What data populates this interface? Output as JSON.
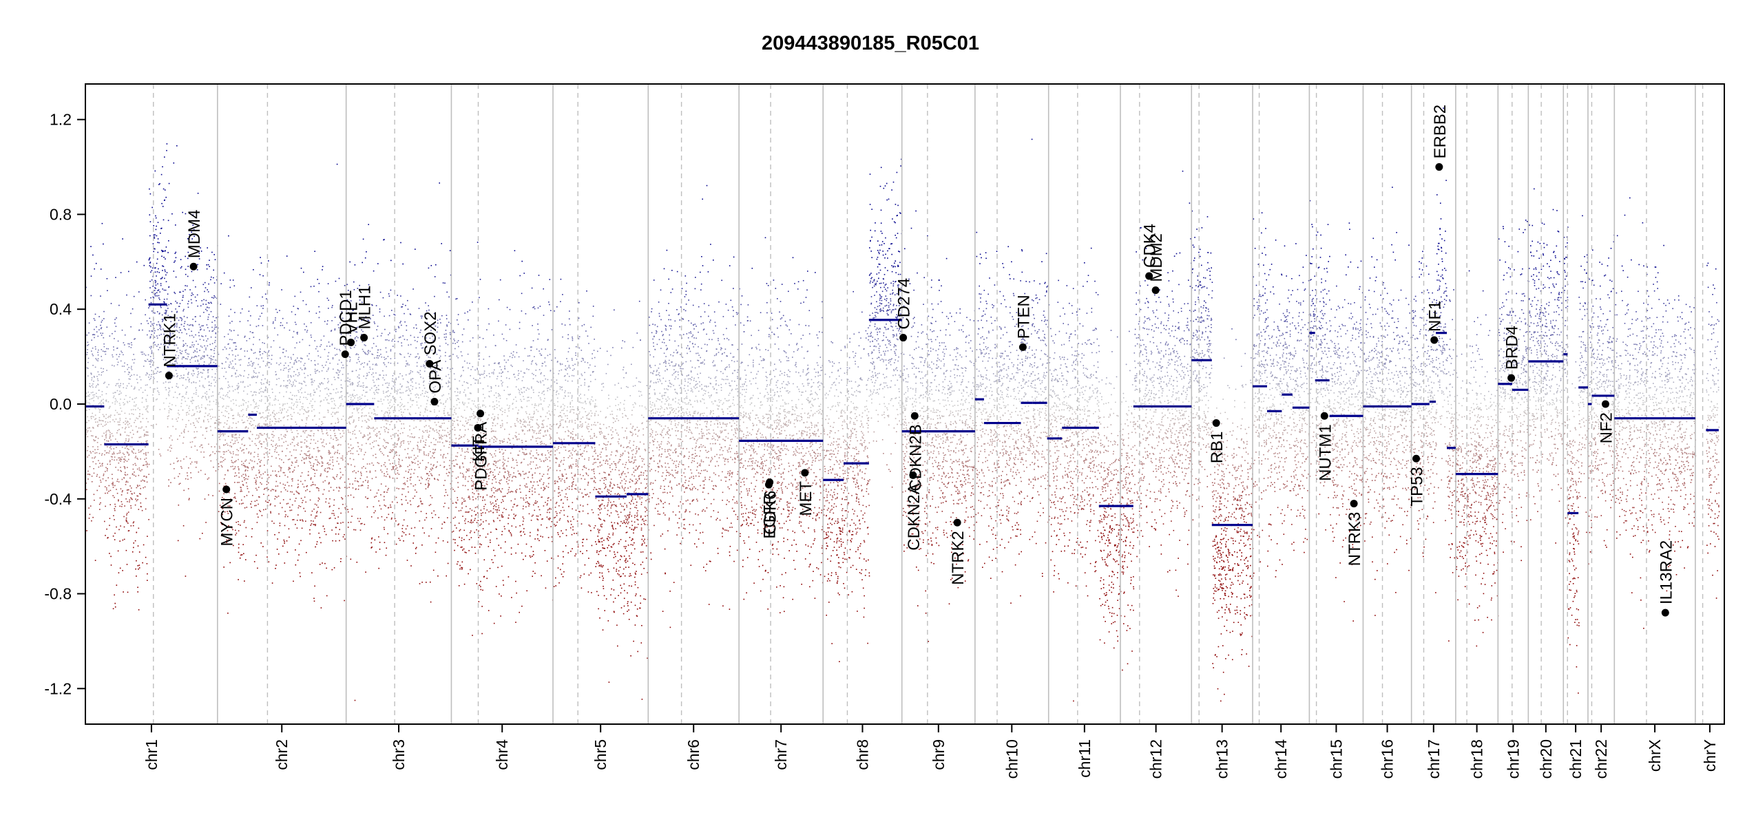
{
  "chart_data": {
    "type": "scatter",
    "title": "209443890185_R05C01",
    "xlabel": "",
    "ylabel": "",
    "ylim": [
      -1.35,
      1.35
    ],
    "yticks": [
      -1.2,
      -0.8,
      -0.4,
      0.0,
      0.4,
      0.8,
      1.2
    ],
    "ytick_labels": [
      "-1.2",
      "-0.8",
      "-0.4",
      "0.0",
      "0.4",
      "0.8",
      "1.2"
    ],
    "grid": false,
    "colors": {
      "gain": "#00008b",
      "loss": "#8b0000",
      "neutral": "#c8c8c8",
      "segment": "#00008b",
      "boundary": "#bebebe",
      "point": "#000000"
    },
    "chromosomes": [
      {
        "name": "chr1",
        "start": 0.0,
        "end": 0.0806,
        "centromere": 0.0415
      },
      {
        "name": "chr2",
        "start": 0.0806,
        "end": 0.1591,
        "centromere": 0.1111
      },
      {
        "name": "chr3",
        "start": 0.1591,
        "end": 0.2233,
        "centromere": 0.1887
      },
      {
        "name": "chr4",
        "start": 0.2233,
        "end": 0.2853,
        "centromere": 0.2397
      },
      {
        "name": "chr5",
        "start": 0.2853,
        "end": 0.3434,
        "centromere": 0.3005
      },
      {
        "name": "chr6",
        "start": 0.3434,
        "end": 0.3988,
        "centromere": 0.3637
      },
      {
        "name": "chr7",
        "start": 0.3988,
        "end": 0.4501,
        "centromere": 0.4181
      },
      {
        "name": "chr8",
        "start": 0.4501,
        "end": 0.4982,
        "centromere": 0.4649
      },
      {
        "name": "chr9",
        "start": 0.4982,
        "end": 0.5428,
        "centromere": 0.5138
      },
      {
        "name": "chr10",
        "start": 0.5428,
        "end": 0.5877,
        "centromere": 0.5563
      },
      {
        "name": "chr11",
        "start": 0.5877,
        "end": 0.6315,
        "centromere": 0.6054
      },
      {
        "name": "chr12",
        "start": 0.6315,
        "end": 0.6749,
        "centromere": 0.6432
      },
      {
        "name": "chr13",
        "start": 0.6749,
        "end": 0.7122,
        "centromere": 0.6795
      },
      {
        "name": "chr14",
        "start": 0.7122,
        "end": 0.7468,
        "centromere": 0.7162
      },
      {
        "name": "chr15",
        "start": 0.7468,
        "end": 0.7796,
        "centromere": 0.7511
      },
      {
        "name": "chr16",
        "start": 0.7796,
        "end": 0.8091,
        "centromere": 0.7914
      },
      {
        "name": "chr17",
        "start": 0.8091,
        "end": 0.8361,
        "centromere": 0.8166
      },
      {
        "name": "chr18",
        "start": 0.8361,
        "end": 0.8619,
        "centromere": 0.8429
      },
      {
        "name": "chr19",
        "start": 0.8619,
        "end": 0.8804,
        "centromere": 0.8705
      },
      {
        "name": "chr20",
        "start": 0.8804,
        "end": 0.9018,
        "centromere": 0.8883
      },
      {
        "name": "chr21",
        "start": 0.9018,
        "end": 0.9168,
        "centromere": 0.9043
      },
      {
        "name": "chr22",
        "start": 0.9168,
        "end": 0.9329,
        "centromere": 0.9191
      },
      {
        "name": "chrX",
        "start": 0.9329,
        "end": 0.9823,
        "centromere": 0.9525
      },
      {
        "name": "chrY",
        "start": 0.9823,
        "end": 1.0,
        "centromere": 0.9868
      }
    ],
    "segments": [
      {
        "x0": 0.0,
        "x1": 0.0115,
        "y": -0.01
      },
      {
        "x0": 0.0115,
        "x1": 0.0385,
        "y": -0.17
      },
      {
        "x0": 0.0385,
        "x1": 0.0498,
        "y": 0.42
      },
      {
        "x0": 0.0498,
        "x1": 0.0806,
        "y": 0.16
      },
      {
        "x0": 0.0806,
        "x1": 0.0993,
        "y": -0.115
      },
      {
        "x0": 0.0993,
        "x1": 0.1046,
        "y": -0.045
      },
      {
        "x0": 0.1046,
        "x1": 0.1591,
        "y": -0.1
      },
      {
        "x0": 0.1591,
        "x1": 0.1762,
        "y": 0.0
      },
      {
        "x0": 0.1762,
        "x1": 0.2233,
        "y": -0.06
      },
      {
        "x0": 0.2233,
        "x1": 0.2397,
        "y": -0.175
      },
      {
        "x0": 0.2397,
        "x1": 0.2853,
        "y": -0.18
      },
      {
        "x0": 0.2853,
        "x1": 0.3111,
        "y": -0.165
      },
      {
        "x0": 0.3111,
        "x1": 0.3302,
        "y": -0.39
      },
      {
        "x0": 0.3302,
        "x1": 0.3434,
        "y": -0.38
      },
      {
        "x0": 0.3434,
        "x1": 0.3988,
        "y": -0.06
      },
      {
        "x0": 0.3988,
        "x1": 0.4501,
        "y": -0.155
      },
      {
        "x0": 0.4501,
        "x1": 0.4626,
        "y": -0.32
      },
      {
        "x0": 0.4626,
        "x1": 0.4781,
        "y": -0.25
      },
      {
        "x0": 0.4781,
        "x1": 0.4982,
        "y": 0.355
      },
      {
        "x0": 0.4982,
        "x1": 0.5428,
        "y": -0.115
      },
      {
        "x0": 0.5428,
        "x1": 0.5483,
        "y": 0.02
      },
      {
        "x0": 0.5483,
        "x1": 0.5708,
        "y": -0.08
      },
      {
        "x0": 0.5708,
        "x1": 0.578,
        "y": 0.005
      },
      {
        "x0": 0.578,
        "x1": 0.5868,
        "y": 0.005
      },
      {
        "x0": 0.5868,
        "x1": 0.5959,
        "y": -0.145
      },
      {
        "x0": 0.5959,
        "x1": 0.6184,
        "y": -0.1
      },
      {
        "x0": 0.6184,
        "x1": 0.6394,
        "y": -0.43
      },
      {
        "x0": 0.6394,
        "x1": 0.6749,
        "y": -0.01
      },
      {
        "x0": 0.6749,
        "x1": 0.6873,
        "y": 0.185
      },
      {
        "x0": 0.6873,
        "x1": 0.7122,
        "y": -0.51
      },
      {
        "x0": 0.7122,
        "x1": 0.721,
        "y": 0.075
      },
      {
        "x0": 0.721,
        "x1": 0.73,
        "y": -0.03
      },
      {
        "x0": 0.73,
        "x1": 0.7365,
        "y": 0.04
      },
      {
        "x0": 0.7365,
        "x1": 0.7468,
        "y": -0.015
      },
      {
        "x0": 0.7468,
        "x1": 0.7503,
        "y": 0.3
      },
      {
        "x0": 0.7503,
        "x1": 0.7591,
        "y": 0.1
      },
      {
        "x0": 0.7591,
        "x1": 0.7796,
        "y": -0.05
      },
      {
        "x0": 0.7796,
        "x1": 0.8091,
        "y": -0.01
      },
      {
        "x0": 0.8091,
        "x1": 0.8201,
        "y": 0.0
      },
      {
        "x0": 0.8201,
        "x1": 0.824,
        "y": 0.01
      },
      {
        "x0": 0.824,
        "x1": 0.8307,
        "y": 0.3
      },
      {
        "x0": 0.8307,
        "x1": 0.8361,
        "y": -0.185
      },
      {
        "x0": 0.8361,
        "x1": 0.8619,
        "y": -0.295
      },
      {
        "x0": 0.8619,
        "x1": 0.8706,
        "y": 0.085
      },
      {
        "x0": 0.8706,
        "x1": 0.8804,
        "y": 0.06
      },
      {
        "x0": 0.8804,
        "x1": 0.9018,
        "y": 0.18
      },
      {
        "x0": 0.9018,
        "x1": 0.9043,
        "y": 0.21
      },
      {
        "x0": 0.9043,
        "x1": 0.911,
        "y": -0.46
      },
      {
        "x0": 0.911,
        "x1": 0.9168,
        "y": 0.07
      },
      {
        "x0": 0.9168,
        "x1": 0.9191,
        "y": 0.0
      },
      {
        "x0": 0.9191,
        "x1": 0.9329,
        "y": 0.035
      },
      {
        "x0": 0.9329,
        "x1": 0.9823,
        "y": -0.06
      },
      {
        "x0": 0.9888,
        "x1": 0.9966,
        "y": -0.11
      }
    ],
    "genes": [
      {
        "name": "NTRK1",
        "x": 0.051,
        "y": 0.12,
        "label_side": "above"
      },
      {
        "name": "MDM4",
        "x": 0.066,
        "y": 0.58,
        "label_side": "above"
      },
      {
        "name": "MYCN",
        "x": 0.086,
        "y": -0.36,
        "label_side": "below"
      },
      {
        "name": "PDCD1",
        "x": 0.1585,
        "y": 0.21,
        "label_side": "above"
      },
      {
        "name": "VHL",
        "x": 0.162,
        "y": 0.26,
        "label_side": "above"
      },
      {
        "name": "MLH1",
        "x": 0.17,
        "y": 0.28,
        "label_side": "above"
      },
      {
        "name": "SOX2",
        "x": 0.21,
        "y": 0.17,
        "label_side": "above"
      },
      {
        "name": "OPA",
        "x": 0.213,
        "y": 0.01,
        "label_side": "above"
      },
      {
        "name": "PDGFRA",
        "x": 0.241,
        "y": -0.04,
        "label_side": "below"
      },
      {
        "name": "KIT",
        "x": 0.2395,
        "y": -0.1,
        "label_side": "below"
      },
      {
        "name": "EGFR",
        "x": 0.417,
        "y": -0.34,
        "label_side": "below"
      },
      {
        "name": "CDK6",
        "x": 0.4175,
        "y": -0.33,
        "label_side": "below"
      },
      {
        "name": "MET",
        "x": 0.439,
        "y": -0.29,
        "label_side": "below"
      },
      {
        "name": "CD274",
        "x": 0.499,
        "y": 0.28,
        "label_side": "above"
      },
      {
        "name": "CDKN2A",
        "x": 0.505,
        "y": -0.3,
        "label_side": "below"
      },
      {
        "name": "CDKN2B",
        "x": 0.506,
        "y": -0.05,
        "label_side": "below"
      },
      {
        "name": "NTRK2",
        "x": 0.532,
        "y": -0.5,
        "label_side": "below"
      },
      {
        "name": "PTEN",
        "x": 0.572,
        "y": 0.24,
        "label_side": "above"
      },
      {
        "name": "CDK4",
        "x": 0.649,
        "y": 0.54,
        "label_side": "above"
      },
      {
        "name": "MDM2",
        "x": 0.653,
        "y": 0.48,
        "label_side": "above"
      },
      {
        "name": "RB1",
        "x": 0.69,
        "y": -0.08,
        "label_side": "below"
      },
      {
        "name": "NUTM1",
        "x": 0.756,
        "y": -0.05,
        "label_side": "below"
      },
      {
        "name": "NTRK3",
        "x": 0.774,
        "y": -0.42,
        "label_side": "below"
      },
      {
        "name": "TP53",
        "x": 0.812,
        "y": -0.23,
        "label_side": "below"
      },
      {
        "name": "NF1",
        "x": 0.823,
        "y": 0.27,
        "label_side": "above"
      },
      {
        "name": "ERBB2",
        "x": 0.826,
        "y": 1.0,
        "label_side": "above"
      },
      {
        "name": "BRD4",
        "x": 0.87,
        "y": 0.11,
        "label_side": "above"
      },
      {
        "name": "NF2",
        "x": 0.9275,
        "y": 0.0,
        "label_side": "below"
      },
      {
        "name": "IL13RA2",
        "x": 0.964,
        "y": -0.88,
        "label_side": "above"
      }
    ]
  }
}
